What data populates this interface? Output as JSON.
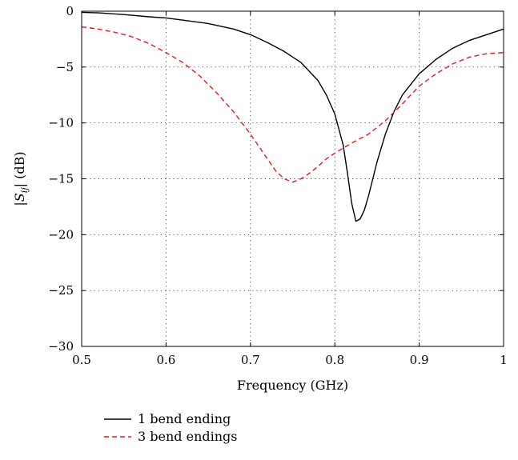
{
  "chart_data": {
    "type": "line",
    "title": "",
    "xlabel": "Frequency (GHz)",
    "ylabel": "|S_ij| (dB)",
    "xlim": [
      0.5,
      1.0
    ],
    "ylim": [
      -30,
      0
    ],
    "xticks": [
      0.5,
      0.6,
      0.7,
      0.8,
      0.9,
      1.0
    ],
    "xtick_labels": [
      "0.5",
      "0.6",
      "0.7",
      "0.8",
      "0.9",
      "1"
    ],
    "yticks": [
      0,
      -5,
      -10,
      -15,
      -20,
      -25,
      -30
    ],
    "ytick_labels": [
      "0",
      "−5",
      "−10",
      "−15",
      "−20",
      "−25",
      "−30"
    ],
    "grid": true,
    "legend_position": "below",
    "series": [
      {
        "name": "1 bend ending",
        "color": "#000000",
        "style": "solid",
        "x": [
          0.5,
          0.52,
          0.55,
          0.58,
          0.6,
          0.62,
          0.65,
          0.68,
          0.7,
          0.72,
          0.74,
          0.76,
          0.78,
          0.79,
          0.8,
          0.81,
          0.815,
          0.82,
          0.825,
          0.83,
          0.835,
          0.84,
          0.85,
          0.86,
          0.87,
          0.88,
          0.9,
          0.92,
          0.94,
          0.96,
          0.98,
          1.0
        ],
        "y": [
          -0.1,
          -0.15,
          -0.3,
          -0.5,
          -0.6,
          -0.8,
          -1.1,
          -1.6,
          -2.1,
          -2.8,
          -3.6,
          -4.6,
          -6.2,
          -7.5,
          -9.2,
          -12.0,
          -14.5,
          -17.2,
          -18.8,
          -18.6,
          -17.8,
          -16.5,
          -13.5,
          -11.0,
          -9.0,
          -7.5,
          -5.6,
          -4.3,
          -3.3,
          -2.6,
          -2.1,
          -1.6
        ]
      },
      {
        "name": "3 bend endings",
        "color": "#e41a1c",
        "style": "dashed",
        "x": [
          0.5,
          0.52,
          0.54,
          0.56,
          0.58,
          0.6,
          0.62,
          0.64,
          0.66,
          0.68,
          0.7,
          0.72,
          0.73,
          0.74,
          0.75,
          0.76,
          0.77,
          0.78,
          0.79,
          0.8,
          0.82,
          0.84,
          0.86,
          0.88,
          0.9,
          0.92,
          0.94,
          0.96,
          0.98,
          1.0
        ],
        "y": [
          -1.4,
          -1.6,
          -1.9,
          -2.3,
          -2.9,
          -3.7,
          -4.6,
          -5.8,
          -7.3,
          -9.0,
          -11.0,
          -13.2,
          -14.3,
          -15.0,
          -15.3,
          -15.0,
          -14.5,
          -13.9,
          -13.2,
          -12.7,
          -11.8,
          -11.0,
          -9.8,
          -8.3,
          -6.7,
          -5.6,
          -4.7,
          -4.1,
          -3.8,
          -3.7
        ]
      }
    ]
  }
}
